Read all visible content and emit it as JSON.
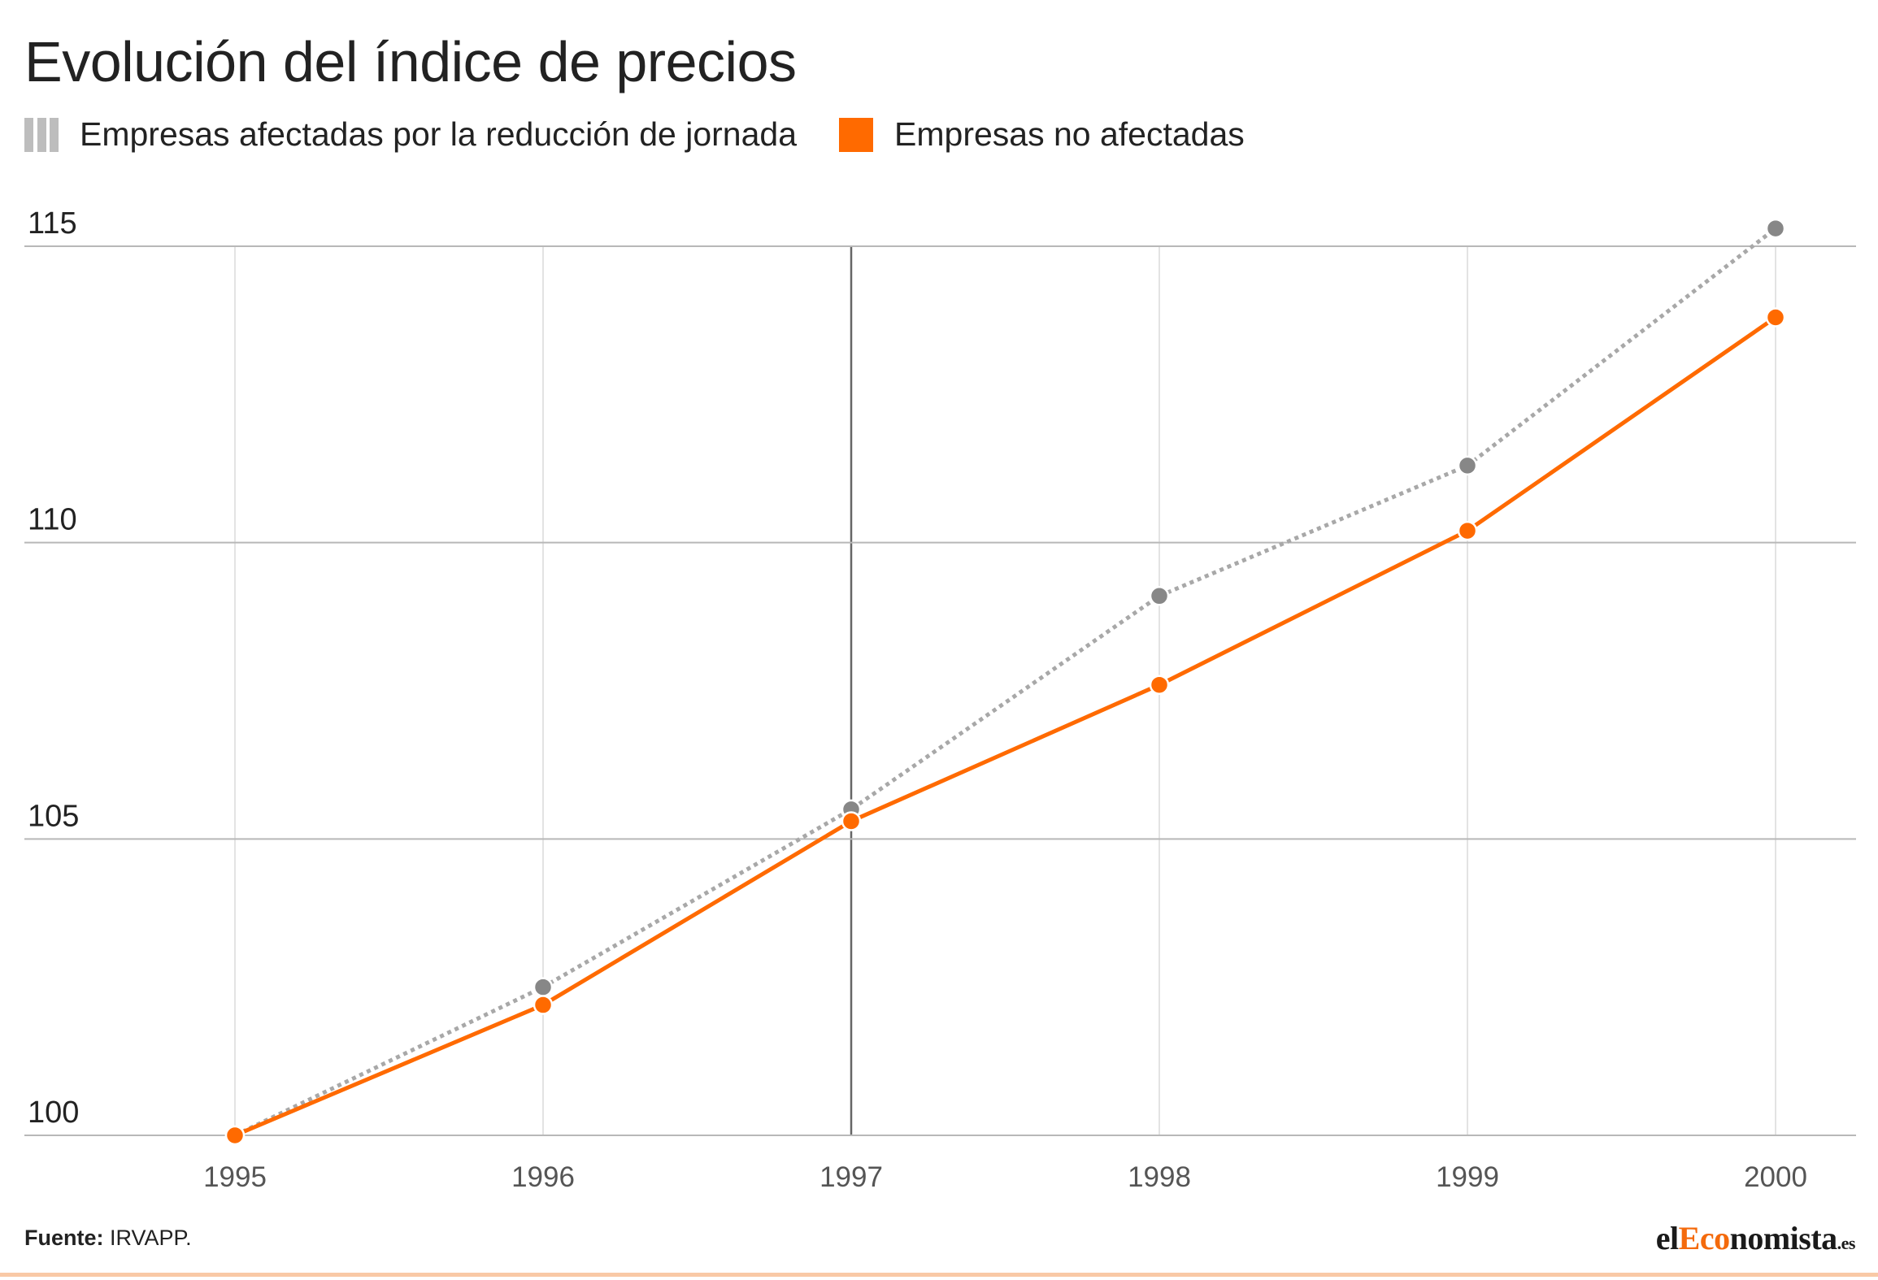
{
  "title": "Evolución del índice de precios",
  "legend": [
    {
      "label": "Empresas afectadas por la reducción de jornada",
      "color": "#a8a8a8",
      "style": "dotted"
    },
    {
      "label": "Empresas no afectadas",
      "color": "#ff6a00",
      "style": "solid"
    }
  ],
  "source": {
    "label": "Fuente:",
    "text": "IRVAPP."
  },
  "brand": {
    "prefix": "el",
    "accent": "Eco",
    "rest": "nomista",
    "suffix": ".es"
  },
  "chart_data": {
    "type": "line",
    "title": "Evolución del índice de precios",
    "xlabel": "",
    "ylabel": "",
    "categories": [
      "1995",
      "1996",
      "1997",
      "1998",
      "1999",
      "2000"
    ],
    "ylim": [
      100,
      115
    ],
    "yticks": [
      100,
      105,
      110,
      115
    ],
    "highlight_category": "1997",
    "grid": true,
    "legend_position": "top-left",
    "series": [
      {
        "name": "Empresas afectadas por la reducción de jornada",
        "color": "#a8a8a8",
        "marker_color": "#878787",
        "style": "dotted",
        "values": [
          100,
          102.5,
          105.5,
          109.1,
          111.3,
          115.3
        ]
      },
      {
        "name": "Empresas no afectadas",
        "color": "#ff6a00",
        "marker_color": "#ff6a00",
        "style": "solid",
        "values": [
          100,
          102.2,
          105.3,
          107.6,
          110.2,
          113.8
        ]
      }
    ]
  }
}
